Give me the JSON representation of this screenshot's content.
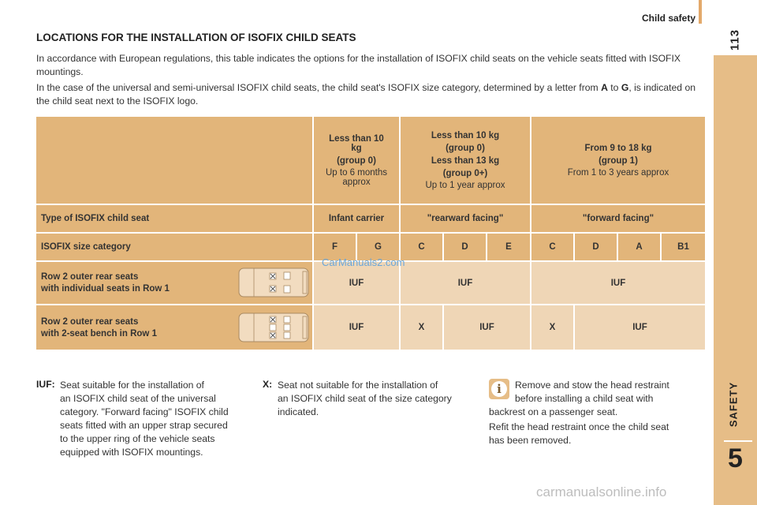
{
  "header": {
    "section_title": "Child safety",
    "page_number": "113"
  },
  "tab": {
    "label": "SAFETY",
    "chapter_number": "5"
  },
  "title": "LOCATIONS FOR THE INSTALLATION OF ISOFIX CHILD SEATS",
  "intro": {
    "p1": "In accordance with European regulations, this table indicates the options for the installation of ISOFIX child seats on the vehicle seats fitted with ISOFIX mountings.",
    "p2_a": "In the case of the universal and semi-universal ISOFIX child seats, the child seat's ISOFIX size category, determined by a letter from ",
    "p2_b": "A",
    "p2_c": " to ",
    "p2_d": "G",
    "p2_e": ", is indicated on the child seat next to the ISOFIX logo."
  },
  "table": {
    "groups": [
      {
        "weight": "Less than 10 kg",
        "group": "(group 0)",
        "age": "Up to 6 months approx"
      },
      {
        "weight": "Less than 10 kg",
        "group": "(group 0)",
        "weight2": "Less than 13 kg",
        "group2": "(group 0+)",
        "age": "Up to 1 year approx"
      },
      {
        "weight": "From 9 to 18 kg",
        "group": "(group 1)",
        "age": "From 1 to 3 years approx"
      }
    ],
    "type_row": {
      "label": "Type of ISOFIX child seat",
      "values": [
        "Infant carrier",
        "\"rearward facing\"",
        "\"forward facing\""
      ]
    },
    "size_row": {
      "label": "ISOFIX size category",
      "values": [
        "F",
        "G",
        "C",
        "D",
        "E",
        "C",
        "D",
        "A",
        "B1"
      ]
    },
    "row1": {
      "label1": "Row 2 outer rear seats",
      "label2": "with individual seats in Row 1",
      "values": [
        "IUF",
        "IUF",
        "IUF"
      ]
    },
    "row2": {
      "label1": "Row 2 outer rear seats",
      "label2": "with 2-seat bench in Row 1",
      "values": [
        "IUF",
        "X",
        "IUF",
        "X",
        "IUF"
      ]
    }
  },
  "watermark": "CarManuals2.com",
  "notes": {
    "iuf_key": "IUF:",
    "iuf_text": [
      "Seat suitable for the installation of",
      "an ISOFIX child seat of the universal",
      "category. \"Forward facing\" ISOFIX child",
      "seats fitted with an upper strap secured",
      "to the upper ring of the vehicle seats",
      "equipped with ISOFIX mountings."
    ],
    "x_key": "X:",
    "x_text": [
      "Seat not suitable for the installation of",
      "an ISOFIX child seat of the size category",
      "indicated."
    ],
    "info_text": [
      "Remove and stow the head restraint",
      "before installing a child seat with",
      "backrest on a passenger seat."
    ],
    "info_text2": [
      "Refit the head restraint once the child seat",
      "has been removed."
    ]
  },
  "icons": {
    "info": "info-icon",
    "van_diagram": "van-seat-diagram"
  },
  "footer": "carmanualsonline.info",
  "colors": {
    "cell_dark": "#e2b57a",
    "cell_light": "#efd6b6",
    "tab": "#e6bd87"
  }
}
